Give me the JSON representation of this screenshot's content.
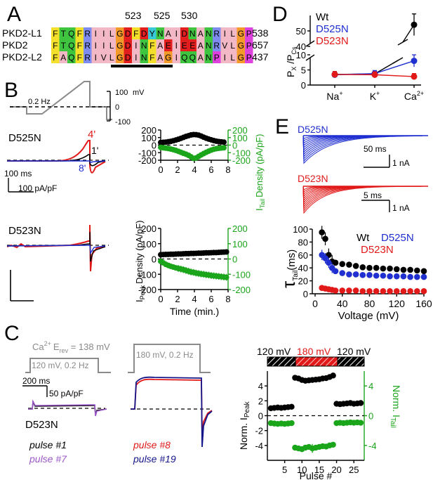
{
  "panel_labels": {
    "a": "A",
    "b": "B",
    "c": "C",
    "d": "D",
    "e": "E"
  },
  "colors": {
    "black": "#000000",
    "blue": "#1f2fd0",
    "red": "#e11919",
    "green": "#1aa51a",
    "purple": "#9b57c9",
    "navy": "#15158a",
    "grey": "#8a8a8a",
    "res_pink": "#f2b8c6",
    "res_yellow": "#f4e02a",
    "res_green": "#3ec43e",
    "res_orange": "#f49a2b",
    "res_blue": "#7e8cf0",
    "res_red": "#e21e1e",
    "res_magenta": "#dd42dd",
    "res_cyan": "#38c8d8"
  },
  "panel_a": {
    "position_labels": [
      "523",
      "525",
      "530"
    ],
    "rows": [
      {
        "name": "PKD2-L1",
        "seq": "FTQFRIILGDFDYNAIDNANRILGP",
        "end": "538"
      },
      {
        "name": "PKD2",
        "seq": "FTQFRIILGDINFAEIEEANRVLGP",
        "end": "657"
      },
      {
        "name": "PKD2-L2",
        "seq": "FAQFRIVLGDINFAGIQQANPILGP",
        "end": "437"
      }
    ]
  },
  "panel_b": {
    "protocol": {
      "freq_label": "0.2 Hz",
      "v_top": "100",
      "v_unit": "mV",
      "v_zero": "0",
      "v_bottom": "-100"
    },
    "d525n": {
      "label": "D525N",
      "trace_labels": {
        "t4": "4'",
        "t1": "1'",
        "t8": "8'"
      },
      "scale_time": "100 ms",
      "scale_amp": "100 pA/pF"
    },
    "d523n": {
      "label": "D523N"
    },
    "chart_top": {
      "ylabel_right": "Density (pA/pF)",
      "ylabel_right_prefix": "I",
      "ylabel_right_sub": "Tail",
      "left_ticks": [
        "200",
        "100",
        "0",
        "-100",
        "-200"
      ],
      "right_ticks": [
        "200",
        "100",
        "0",
        "-100",
        "-200"
      ],
      "x_ticks": [
        "0",
        "2",
        "4",
        "6",
        "8"
      ]
    },
    "chart_bottom": {
      "ylabel_left_prefix": "I",
      "ylabel_left_sub": "Peak",
      "ylabel_left": "Density (pA/pF)",
      "left_ticks": [
        "200",
        "100",
        "0",
        "-100",
        "-200"
      ],
      "right_ticks": [
        "200",
        "100",
        "0",
        "-100",
        "-200"
      ],
      "x_ticks": [
        "0",
        "2",
        "4",
        "6",
        "8"
      ],
      "xlabel": "Time (min.)"
    }
  },
  "panel_c": {
    "erev_prefix": "Ca",
    "erev_sup": "2+",
    "erev_text": "E",
    "erev_sub": "rev",
    "erev_value": " = 138 mV",
    "step_120": "120 mV, 0.2 Hz",
    "step_180": "180 mV, 0.2 Hz",
    "scale_time": "200 ms",
    "scale_amp": "50 pA/pF",
    "cell_label": "D523N",
    "pulse_labels": [
      "pulse #1",
      "pulse #7",
      "pulse #8",
      "pulse #19"
    ],
    "bar_labels": [
      "120 mV",
      "180 mV",
      "120 mV"
    ],
    "norm_left_prefix": "Norm. I",
    "norm_left_sub": "Peak",
    "norm_right_prefix": "Norm. I",
    "norm_right_sub": "Tail",
    "left_ticks": [
      "4",
      "2",
      "0",
      "-2",
      "-4"
    ],
    "right_ticks": [
      "4",
      "0",
      "-4"
    ],
    "x_ticks": [
      "5",
      "10",
      "15",
      "20",
      "25"
    ],
    "xlabel": "Pulse #"
  },
  "panel_d": {
    "legend": [
      "Wt",
      "D525N",
      "D523N"
    ],
    "y_ticks": [
      "50",
      "40",
      "10",
      "5",
      "0"
    ],
    "x_labels": [
      "Na",
      "K",
      "Ca"
    ],
    "x_sups": [
      "+",
      "+",
      "2+"
    ]
  },
  "panel_e": {
    "trace_label_blue": "D525N",
    "trace_label_red": "D523N",
    "scale_blue_time": "50 ms",
    "scale_blue_amp": "1 nA",
    "scale_red_time": "5 ms",
    "scale_red_amp": "1 nA",
    "legend": [
      "Wt",
      "D525N",
      "D523N"
    ],
    "y_ticks": [
      "100",
      "80",
      "60",
      "40",
      "20",
      "0"
    ],
    "x_ticks": [
      "0",
      "40",
      "80",
      "120",
      "160"
    ],
    "ylabel_text": "τ",
    "ylabel_sub": "Tail",
    "ylabel_unit": "(ms)",
    "xlabel": "Voltage (mV)"
  },
  "chart_data": [
    {
      "type": "scatter",
      "id": "B-timecourse-D525N",
      "x": [
        0,
        0.3,
        0.6,
        0.9,
        1.2,
        1.5,
        1.8,
        2.1,
        2.4,
        2.7,
        3.0,
        3.3,
        3.6,
        3.9,
        4.2,
        4.5,
        4.8,
        5.1,
        5.4,
        5.7,
        6.0,
        6.3,
        6.6,
        6.9,
        7.2,
        7.5
      ],
      "series": [
        {
          "name": "Peak",
          "axis": "left",
          "values": [
            35,
            37,
            40,
            45,
            50,
            58,
            67,
            78,
            90,
            102,
            115,
            125,
            135,
            140,
            138,
            132,
            120,
            105,
            92,
            80,
            70,
            60,
            52,
            47,
            43,
            40
          ]
        },
        {
          "name": "Tail",
          "axis": "right",
          "values": [
            -30,
            -35,
            -40,
            -45,
            -52,
            -60,
            -70,
            -82,
            -95,
            -108,
            -120,
            -135,
            -155,
            -175,
            -170,
            -150,
            -130,
            -112,
            -95,
            -80,
            -66,
            -55,
            -47,
            -42,
            -38,
            -35
          ]
        }
      ],
      "xlim": [
        0,
        8
      ],
      "ylim": [
        -200,
        200
      ]
    },
    {
      "type": "scatter",
      "id": "B-timecourse-D523N",
      "x": [
        0,
        0.3,
        0.6,
        0.9,
        1.2,
        1.5,
        1.8,
        2.1,
        2.4,
        2.7,
        3.0,
        3.3,
        3.6,
        3.9,
        4.2,
        4.5,
        4.8,
        5.1,
        5.4,
        5.7,
        6.0,
        6.3,
        6.6,
        6.9,
        7.2,
        7.5,
        7.8
      ],
      "series": [
        {
          "name": "Peak",
          "axis": "left",
          "values": [
            28,
            29,
            30,
            30,
            31,
            31,
            32,
            33,
            33,
            34,
            35,
            35,
            36,
            36,
            37,
            38,
            38,
            39,
            40,
            40,
            41,
            42,
            42,
            43,
            44,
            45,
            46
          ]
        },
        {
          "name": "Tail",
          "axis": "right",
          "values": [
            -15,
            -25,
            -35,
            -42,
            -48,
            -53,
            -58,
            -62,
            -66,
            -70,
            -75,
            -80,
            -85,
            -88,
            -92,
            -95,
            -98,
            -100,
            -103,
            -105,
            -108,
            -110,
            -112,
            -114,
            -116,
            -118,
            -120
          ]
        }
      ],
      "xlim": [
        0,
        8
      ],
      "ylim": [
        -200,
        200
      ]
    },
    {
      "type": "scatter",
      "id": "C-normalized",
      "x": [
        1,
        2,
        3,
        4,
        5,
        6,
        7,
        8,
        9,
        10,
        11,
        12,
        13,
        14,
        15,
        16,
        17,
        18,
        19,
        20,
        21,
        22,
        23,
        24,
        25,
        26,
        27
      ],
      "series": [
        {
          "name": "Norm. I Peak",
          "axis": "left",
          "values": [
            1,
            1.05,
            1.1,
            1.05,
            1.1,
            1.15,
            1.2,
            5.1,
            5.0,
            4.8,
            4.7,
            4.75,
            4.8,
            4.85,
            4.9,
            5.0,
            5.05,
            5.2,
            5.4,
            1.6,
            1.55,
            1.6,
            1.65,
            1.7,
            1.6,
            1.65,
            1.7
          ]
        },
        {
          "name": "Norm. I Tail",
          "axis": "right",
          "values": [
            -1,
            -1.05,
            -1.1,
            -1.05,
            -1.1,
            -1.05,
            -1.0,
            -4.3,
            -4.4,
            -4.5,
            -4.3,
            -4.2,
            -4.4,
            -4.3,
            -4.2,
            -4.1,
            -4.15,
            -4.0,
            -3.9,
            -1.0,
            -0.95,
            -1.0,
            -0.95,
            -0.9,
            -0.95,
            -0.9,
            -0.95
          ]
        }
      ],
      "xlim": [
        0,
        28
      ],
      "ylim": [
        -6,
        6
      ]
    },
    {
      "type": "line",
      "id": "D-permeability",
      "categories": [
        "Na+",
        "K+",
        "Ca2+"
      ],
      "series": [
        {
          "name": "Wt",
          "values": [
            3.5,
            3.7,
            54
          ]
        },
        {
          "name": "D525N",
          "values": [
            3.4,
            3.8,
            8.0
          ]
        },
        {
          "name": "D523N",
          "values": [
            3.5,
            3.4,
            2.8
          ]
        }
      ],
      "ylabel": "PX/PCs",
      "y_break": [
        10,
        40
      ]
    },
    {
      "type": "scatter",
      "id": "E-tau-tail",
      "x": [
        10,
        15,
        20,
        25,
        30,
        40,
        50,
        60,
        70,
        80,
        90,
        100,
        110,
        120,
        130,
        140,
        150,
        160
      ],
      "series": [
        {
          "name": "Wt",
          "values": [
            95,
            85,
            60,
            50,
            48,
            46,
            45,
            43,
            41,
            40,
            40,
            39,
            39,
            38,
            37,
            37,
            36,
            35
          ]
        },
        {
          "name": "D525N",
          "values": [
            60,
            55,
            48,
            40,
            35,
            32,
            30,
            30,
            29,
            29,
            28,
            28,
            27,
            27,
            27,
            26,
            26,
            26
          ]
        },
        {
          "name": "D523N",
          "values": [
            9,
            8,
            7,
            6,
            5,
            5,
            5,
            5,
            4,
            4,
            4,
            4,
            4,
            4,
            4,
            4,
            4,
            4
          ]
        }
      ],
      "xlabel": "Voltage (mV)",
      "ylabel": "τTail (ms)",
      "xlim": [
        0,
        160
      ],
      "ylim": [
        0,
        100
      ]
    }
  ]
}
